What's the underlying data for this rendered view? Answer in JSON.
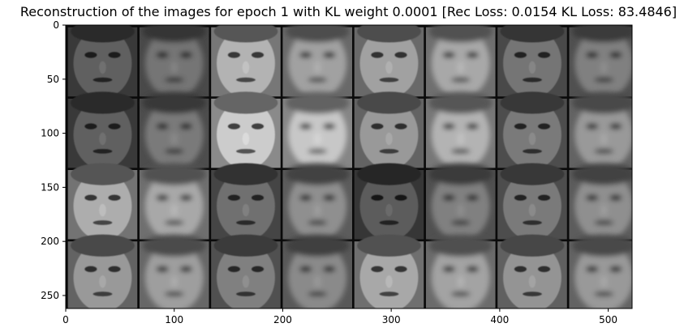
{
  "title": "Reconstruction of the images for epoch 1 with KL weight 0.0001 [Rec Loss: 0.0154 KL Loss: 83.4846]",
  "chart_data": {
    "type": "heatmap",
    "title": "Reconstruction of the images for epoch 1 with KL weight 0.0001 [Rec Loss: 0.0154 KL Loss: 83.4846]",
    "colormap": "gray",
    "image_size": [
      522,
      262
    ],
    "grid": {
      "rows": 4,
      "cols": 8,
      "tile_size": 64,
      "separator": 2
    },
    "layout_description": "Even columns are original face images; odd columns are blurry reconstructions.",
    "x_ticks": [
      0,
      100,
      200,
      300,
      400,
      500
    ],
    "y_ticks": [
      0,
      50,
      100,
      150,
      200,
      250
    ],
    "xlim": [
      0,
      522
    ],
    "ylim": [
      262,
      0
    ],
    "tiles": [
      [
        {
          "kind": "original",
          "tone": 0.3
        },
        {
          "kind": "reconstruction",
          "tone": 0.38
        },
        {
          "kind": "original",
          "tone": 0.62
        },
        {
          "kind": "reconstruction",
          "tone": 0.55
        },
        {
          "kind": "original",
          "tone": 0.55
        },
        {
          "kind": "reconstruction",
          "tone": 0.58
        },
        {
          "kind": "original",
          "tone": 0.38
        },
        {
          "kind": "reconstruction",
          "tone": 0.42
        }
      ],
      [
        {
          "kind": "original",
          "tone": 0.3
        },
        {
          "kind": "reconstruction",
          "tone": 0.4
        },
        {
          "kind": "original",
          "tone": 0.72
        },
        {
          "kind": "reconstruction",
          "tone": 0.7
        },
        {
          "kind": "original",
          "tone": 0.52
        },
        {
          "kind": "reconstruction",
          "tone": 0.62
        },
        {
          "kind": "original",
          "tone": 0.4
        },
        {
          "kind": "reconstruction",
          "tone": 0.52
        }
      ],
      [
        {
          "kind": "original",
          "tone": 0.6
        },
        {
          "kind": "reconstruction",
          "tone": 0.58
        },
        {
          "kind": "original",
          "tone": 0.36
        },
        {
          "kind": "reconstruction",
          "tone": 0.48
        },
        {
          "kind": "original",
          "tone": 0.28
        },
        {
          "kind": "reconstruction",
          "tone": 0.42
        },
        {
          "kind": "original",
          "tone": 0.4
        },
        {
          "kind": "reconstruction",
          "tone": 0.48
        }
      ],
      [
        {
          "kind": "original",
          "tone": 0.52
        },
        {
          "kind": "reconstruction",
          "tone": 0.54
        },
        {
          "kind": "original",
          "tone": 0.42
        },
        {
          "kind": "reconstruction",
          "tone": 0.46
        },
        {
          "kind": "original",
          "tone": 0.58
        },
        {
          "kind": "reconstruction",
          "tone": 0.56
        },
        {
          "kind": "original",
          "tone": 0.5
        },
        {
          "kind": "reconstruction",
          "tone": 0.52
        }
      ]
    ]
  }
}
